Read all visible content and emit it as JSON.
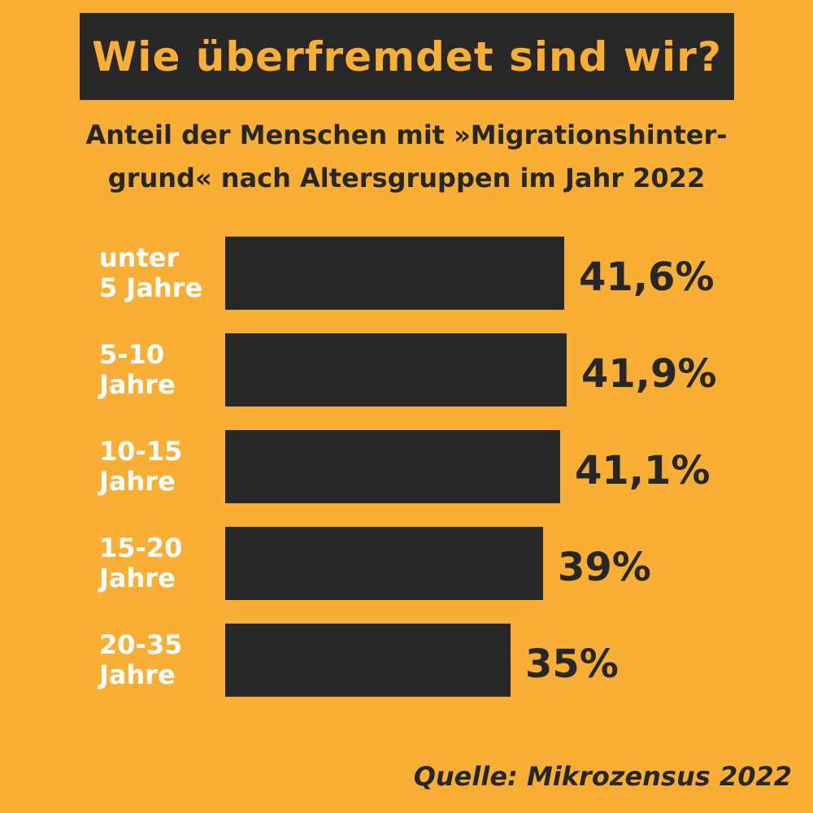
{
  "title": "Wie überfremdet sind wir?",
  "subtitle": {
    "line1": "Anteil der Menschen mit »Migrationshinter-",
    "line2": "grund« nach Altersgruppen im Jahr 2022"
  },
  "source": "Quelle: Mikrozensus 2022",
  "colors": {
    "background": "#f9af35",
    "bar": "#272727",
    "label": "#ffffff",
    "text": "#272727"
  },
  "chart_data": {
    "type": "bar",
    "orientation": "horizontal",
    "categories": [
      [
        "unter",
        "5 Jahre"
      ],
      [
        "5-10",
        "Jahre"
      ],
      [
        "10-15",
        "Jahre"
      ],
      [
        "15-20",
        "Jahre"
      ],
      [
        "20-35",
        "Jahre"
      ]
    ],
    "values": [
      41.6,
      41.9,
      41.1,
      39,
      35
    ],
    "value_labels": [
      "41,6%",
      "41,9%",
      "41,1%",
      "39%",
      "35%"
    ],
    "unit": "%",
    "grid": false,
    "legend": "none"
  }
}
